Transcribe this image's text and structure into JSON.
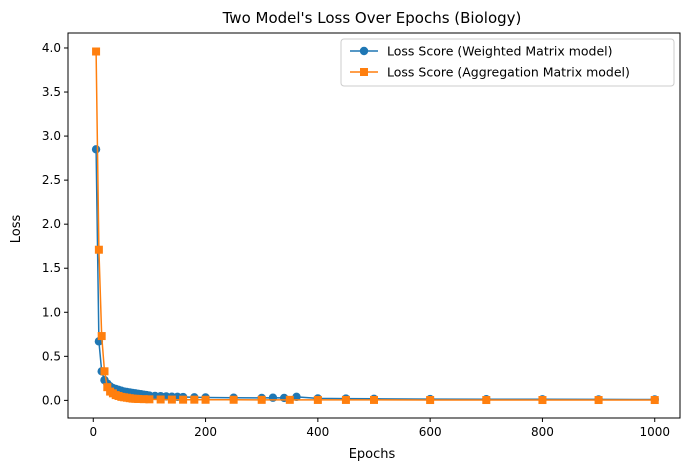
{
  "chart_data": {
    "type": "line",
    "title": "Two Model's Loss Over Epochs (Biology)",
    "xlabel": "Epochs",
    "ylabel": "Loss",
    "xlim": [
      -45,
      1045
    ],
    "ylim": [
      -0.2,
      4.17
    ],
    "xticks": [
      0,
      200,
      400,
      600,
      800,
      1000
    ],
    "xtick_labels": [
      "0",
      "200",
      "400",
      "600",
      "800",
      "1000"
    ],
    "yticks": [
      0.0,
      0.5,
      1.0,
      1.5,
      2.0,
      2.5,
      3.0,
      3.5,
      4.0
    ],
    "ytick_labels": [
      "0.0",
      "0.5",
      "1.0",
      "1.5",
      "2.0",
      "2.5",
      "3.0",
      "3.5",
      "4.0"
    ],
    "grid": false,
    "legend_position": "top-right",
    "series": [
      {
        "name": "Loss Score (Weighted Matrix model)",
        "color": "#1f77b4",
        "marker": "circle",
        "x": [
          5,
          10,
          15,
          20,
          25,
          30,
          35,
          40,
          45,
          50,
          55,
          60,
          65,
          70,
          75,
          80,
          85,
          90,
          95,
          100,
          110,
          120,
          130,
          140,
          150,
          160,
          180,
          200,
          250,
          300,
          320,
          340,
          362,
          400,
          450,
          500,
          600,
          700,
          800,
          900,
          1000
        ],
        "y": [
          2.85,
          0.67,
          0.33,
          0.23,
          0.19,
          0.16,
          0.14,
          0.13,
          0.12,
          0.11,
          0.1,
          0.095,
          0.09,
          0.085,
          0.08,
          0.075,
          0.07,
          0.065,
          0.06,
          0.055,
          0.05,
          0.048,
          0.045,
          0.042,
          0.04,
          0.038,
          0.035,
          0.033,
          0.03,
          0.028,
          0.03,
          0.028,
          0.04,
          0.022,
          0.02,
          0.018,
          0.015,
          0.013,
          0.012,
          0.011,
          0.01
        ]
      },
      {
        "name": "Loss Score (Aggregation Matrix model)",
        "color": "#ff7f0e",
        "marker": "square",
        "x": [
          5,
          10,
          15,
          20,
          25,
          30,
          35,
          40,
          45,
          50,
          55,
          60,
          65,
          70,
          75,
          80,
          90,
          100,
          120,
          140,
          160,
          180,
          200,
          250,
          300,
          350,
          400,
          450,
          500,
          600,
          700,
          800,
          900,
          1000
        ],
        "y": [
          3.96,
          1.71,
          0.73,
          0.33,
          0.15,
          0.1,
          0.08,
          0.06,
          0.05,
          0.04,
          0.035,
          0.03,
          0.025,
          0.02,
          0.018,
          0.016,
          0.014,
          0.012,
          0.01,
          0.009,
          0.008,
          0.008,
          0.007,
          0.007,
          0.006,
          0.006,
          0.005,
          0.005,
          0.005,
          0.004,
          0.004,
          0.004,
          0.004,
          0.004
        ]
      }
    ]
  }
}
